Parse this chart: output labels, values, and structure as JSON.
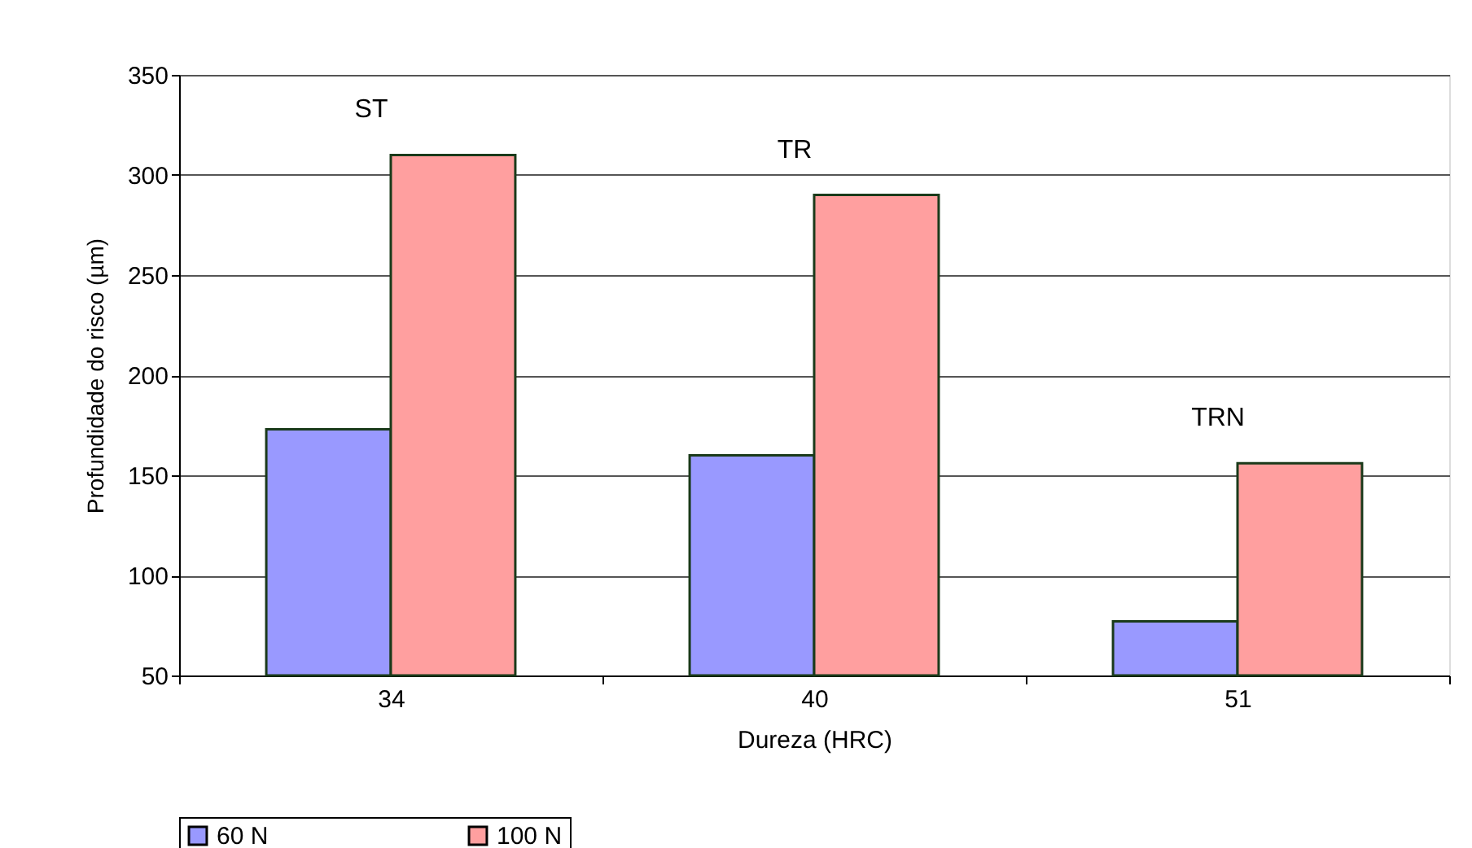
{
  "chart_data": {
    "type": "bar",
    "xlabel": "Dureza (HRC)",
    "ylabel": "Profundidade do risco (µm)",
    "categories": [
      "34",
      "40",
      "51"
    ],
    "series": [
      {
        "name": "60 N",
        "color": "#9999ff",
        "values": [
          173,
          160,
          77
        ]
      },
      {
        "name": "100 N",
        "color": "#ff9f9f",
        "values": [
          310,
          290,
          156
        ]
      }
    ],
    "annotations": [
      "ST",
      "TR",
      "TRN"
    ],
    "ylim": [
      50,
      350
    ],
    "yticks": [
      50,
      100,
      150,
      200,
      250,
      300,
      350
    ],
    "grid": "y",
    "legend": "bottom"
  }
}
